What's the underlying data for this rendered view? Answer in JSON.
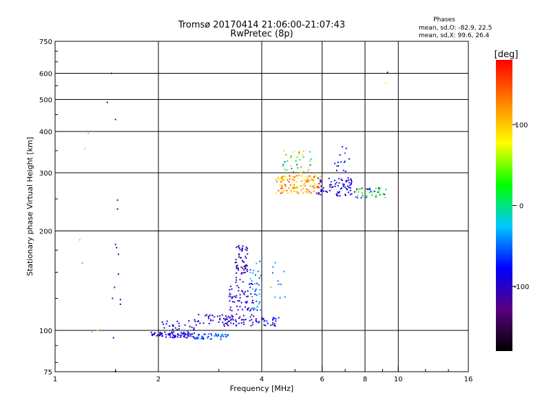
{
  "chart_data": {
    "type": "scatter",
    "title": "Tromsø 20170414 21:06:00-21:07:43",
    "subtitle": "RwPretec (8p)",
    "xlabel": "Frequency [MHz]",
    "ylabel": "Stationary phase Virtual Height [km]",
    "xscale": "log2",
    "yscale": "log",
    "xlim": [
      1,
      16
    ],
    "ylim": [
      75,
      750
    ],
    "xticks": [
      1,
      2,
      4,
      6,
      8,
      10,
      16
    ],
    "xtick_labels": [
      "1",
      "2",
      "4",
      "6",
      "8",
      "10",
      "16"
    ],
    "yticks": [
      75,
      100,
      200,
      300,
      400,
      500,
      600,
      750
    ],
    "ytick_labels": [
      "75",
      "100",
      "200",
      "300",
      "400",
      "500",
      "600",
      "750"
    ],
    "grid": true,
    "stats": {
      "heading": "Phases",
      "line1": "mean, sd,O: -82.9, 22.5",
      "line2": "mean, sd,X:  99.6, 26.4"
    },
    "colorbar": {
      "label": "[deg]",
      "min": -180,
      "max": 180,
      "ticks": [
        100,
        0,
        -100
      ],
      "tick_labels": [
        "100",
        "0",
        "-100"
      ],
      "colors": [
        "#000000",
        "#5a0080",
        "#0000ff",
        "#00c8ff",
        "#00ff00",
        "#ffff00",
        "#ff8000",
        "#ff0000"
      ]
    },
    "series": [
      {
        "points": [
          [
            1.12,
            210,
            80
          ],
          [
            1.18,
            188,
            110
          ],
          [
            1.2,
            160,
            120
          ],
          [
            1.22,
            355,
            60
          ],
          [
            1.25,
            395,
            110
          ],
          [
            1.28,
            99,
            100
          ],
          [
            1.33,
            100,
            90
          ],
          [
            1.42,
            490,
            -100
          ],
          [
            1.46,
            600,
            -100
          ],
          [
            1.47,
            125,
            -100
          ],
          [
            1.48,
            95,
            -100
          ],
          [
            1.49,
            135,
            -110
          ],
          [
            1.5,
            435,
            -110
          ],
          [
            1.5,
            182,
            -100
          ],
          [
            1.51,
            178,
            -110
          ],
          [
            1.52,
            233,
            -100
          ],
          [
            1.52,
            248,
            -110
          ],
          [
            1.53,
            148,
            -110
          ],
          [
            1.53,
            170,
            -100
          ],
          [
            1.55,
            124,
            -100
          ],
          [
            1.55,
            120,
            -110
          ],
          [
            1.5,
            75,
            -100
          ]
        ]
      },
      {
        "points": [
          [
            9.3,
            604,
            -110
          ],
          [
            9.2,
            560,
            70
          ],
          [
            4.0,
            78,
            120
          ],
          [
            4.25,
            135,
            120
          ]
        ]
      }
    ],
    "clusters": [
      {
        "fx": [
          1.88,
          2.05
        ],
        "h": [
          96,
          99
        ],
        "n": 20,
        "phase": [
          -110,
          -90
        ]
      },
      {
        "fx": [
          2.05,
          2.55
        ],
        "h": [
          95,
          99
        ],
        "n": 60,
        "phase": [
          -110,
          -70
        ]
      },
      {
        "fx": [
          2.55,
          3.2
        ],
        "h": [
          94,
          98
        ],
        "n": 50,
        "phase": [
          -80,
          -30
        ]
      },
      {
        "fx": [
          2.05,
          2.6
        ],
        "h": [
          100,
          108
        ],
        "n": 25,
        "phase": [
          -110,
          -80
        ]
      },
      {
        "fx": [
          2.6,
          3.3
        ],
        "h": [
          104,
          112
        ],
        "n": 40,
        "phase": [
          -120,
          -80
        ]
      },
      {
        "fx": [
          3.1,
          4.5
        ],
        "h": [
          103,
          110
        ],
        "n": 60,
        "phase": [
          -120,
          -60
        ]
      },
      {
        "fx": [
          3.2,
          3.9
        ],
        "h": [
          110,
          140
        ],
        "n": 70,
        "phase": [
          -120,
          -70
        ]
      },
      {
        "fx": [
          3.35,
          3.65
        ],
        "h": [
          140,
          182
        ],
        "n": 60,
        "phase": [
          -120,
          -90
        ]
      },
      {
        "fx": [
          3.7,
          4.0
        ],
        "h": [
          115,
          165
        ],
        "n": 30,
        "phase": [
          -60,
          -20
        ]
      },
      {
        "fx": [
          4.3,
          4.7
        ],
        "h": [
          125,
          165
        ],
        "n": 10,
        "phase": [
          -50,
          -30
        ]
      },
      {
        "fx": [
          4.4,
          6.0
        ],
        "h": [
          260,
          295
        ],
        "n": 140,
        "phase": [
          70,
          160
        ]
      },
      {
        "fx": [
          4.6,
          5.6
        ],
        "h": [
          300,
          350
        ],
        "n": 40,
        "phase": [
          -60,
          150
        ]
      },
      {
        "fx": [
          5.8,
          7.5
        ],
        "h": [
          255,
          290
        ],
        "n": 80,
        "phase": [
          -120,
          -60
        ]
      },
      {
        "fx": [
          6.5,
          7.2
        ],
        "h": [
          300,
          360
        ],
        "n": 15,
        "phase": [
          -120,
          -40
        ]
      },
      {
        "fx": [
          7.5,
          9.3
        ],
        "h": [
          252,
          270
        ],
        "n": 50,
        "phase": [
          -110,
          80
        ]
      }
    ]
  }
}
